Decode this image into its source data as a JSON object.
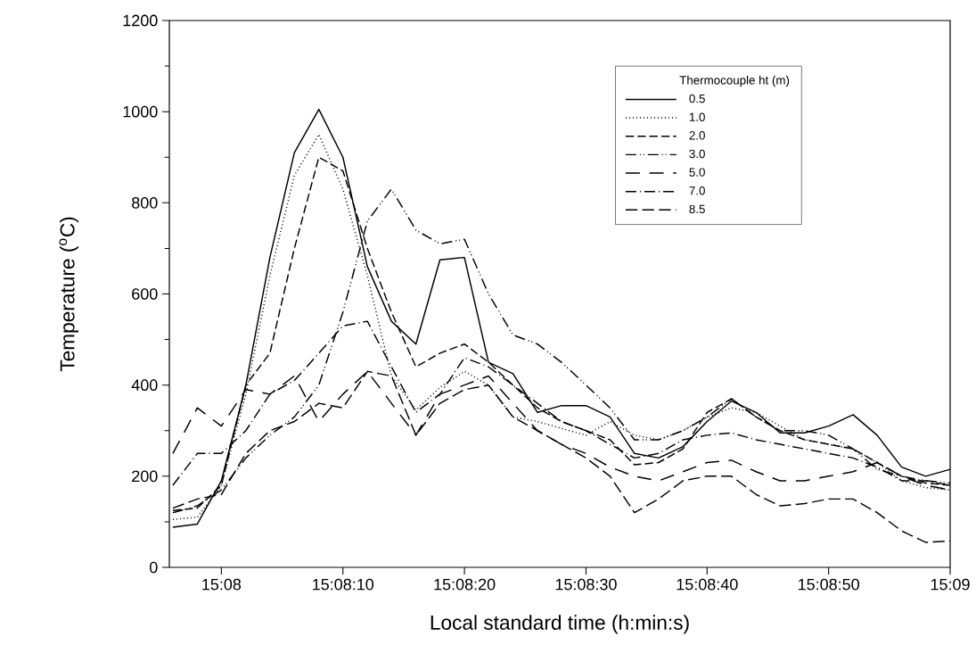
{
  "chart_data": {
    "type": "line",
    "xlabel": "Local standard time (h:min:s)",
    "ylabel": "Temperature ($^{o}$C)",
    "legend_title": "Thermocouple ht (m)",
    "legend": "top right",
    "xlim": [
      15.13214,
      15.15
    ],
    "ylim": [
      0,
      1200
    ],
    "xticks": [
      {
        "value": 15.13333,
        "label": "15:08"
      },
      {
        "value": 15.13611,
        "label": "15:08:10"
      },
      {
        "value": 15.13889,
        "label": "15:08:20"
      },
      {
        "value": 15.14167,
        "label": "15:08:30"
      },
      {
        "value": 15.14444,
        "label": "15:08:40"
      },
      {
        "value": 15.14722,
        "label": "15:08:50"
      },
      {
        "value": 15.15,
        "label": "15:09"
      }
    ],
    "yticks": [
      0,
      200,
      400,
      600,
      800,
      1000,
      1200
    ],
    "x": [
      15.13222,
      15.13278,
      15.13333,
      15.13389,
      15.13444,
      15.135,
      15.13556,
      15.13611,
      15.13667,
      15.13722,
      15.13778,
      15.13833,
      15.13889,
      15.13944,
      15.14,
      15.14056,
      15.14111,
      15.14167,
      15.14222,
      15.14278,
      15.14333,
      15.14389,
      15.14444,
      15.145,
      15.14556,
      15.14611,
      15.14667,
      15.14722,
      15.14778,
      15.14833,
      15.14889,
      15.14944,
      15.15
    ],
    "series": [
      {
        "name": "0.5",
        "color": "#000000",
        "line_style": "solid",
        "values": [
          88,
          95,
          190,
          400,
          680,
          910,
          1005,
          900,
          660,
          540,
          490,
          675,
          680,
          450,
          425,
          340,
          355,
          355,
          330,
          250,
          240,
          265,
          320,
          365,
          340,
          295,
          295,
          310,
          335,
          290,
          220,
          200,
          215
        ]
      },
      {
        "name": "1.0",
        "color": "#000000",
        "line_style": "dotted",
        "values": [
          105,
          110,
          180,
          380,
          640,
          860,
          950,
          830,
          640,
          420,
          345,
          395,
          430,
          400,
          330,
          320,
          305,
          290,
          320,
          290,
          280,
          300,
          330,
          350,
          340,
          310,
          280,
          270,
          260,
          230,
          190,
          175,
          170
        ]
      },
      {
        "name": "2.0",
        "color": "#000000",
        "line_style": "dashed",
        "values": [
          125,
          130,
          180,
          400,
          470,
          700,
          900,
          870,
          700,
          560,
          440,
          470,
          490,
          450,
          400,
          350,
          320,
          300,
          280,
          225,
          230,
          260,
          340,
          370,
          330,
          300,
          280,
          270,
          260,
          230,
          200,
          185,
          180
        ]
      },
      {
        "name": "3.0",
        "color": "#000000",
        "line_style": "dashdotdotted",
        "values": [
          120,
          135,
          170,
          240,
          290,
          330,
          400,
          560,
          760,
          830,
          740,
          710,
          720,
          600,
          510,
          490,
          450,
          400,
          350,
          280,
          280,
          300,
          330,
          370,
          330,
          300,
          300,
          290,
          260,
          215,
          200,
          190,
          185
        ]
      },
      {
        "name": "5.0",
        "color": "#000000",
        "line_style": "loosely dashed",
        "values": [
          250,
          350,
          310,
          390,
          380,
          420,
          320,
          380,
          430,
          360,
          290,
          380,
          400,
          420,
          360,
          300,
          270,
          250,
          220,
          200,
          190,
          210,
          230,
          235,
          210,
          190,
          190,
          200,
          210,
          230,
          200,
          180,
          170
        ]
      },
      {
        "name": "7.0",
        "color": "#000000",
        "line_style": "dashdotted",
        "values": [
          180,
          250,
          250,
          300,
          380,
          410,
          470,
          530,
          540,
          440,
          340,
          380,
          460,
          440,
          400,
          360,
          320,
          300,
          270,
          240,
          250,
          280,
          290,
          295,
          280,
          270,
          260,
          250,
          240,
          220,
          190,
          190,
          180
        ]
      },
      {
        "name": "8.5",
        "color": "#000000",
        "line_style": "long dashed",
        "values": [
          130,
          150,
          160,
          250,
          300,
          320,
          360,
          350,
          430,
          420,
          290,
          360,
          390,
          400,
          330,
          300,
          270,
          240,
          200,
          120,
          150,
          190,
          200,
          200,
          160,
          135,
          140,
          150,
          150,
          120,
          80,
          55,
          58
        ]
      }
    ]
  }
}
